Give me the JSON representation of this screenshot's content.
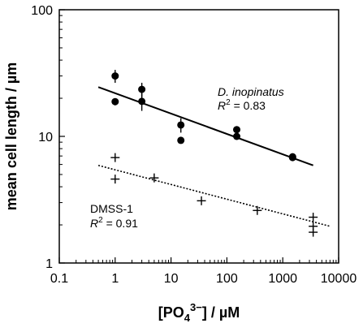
{
  "chart_data": {
    "type": "scatter",
    "xlabel": {
      "pre": "[PO",
      "sub": "4",
      "sup": "3−",
      "post": "] / µM"
    },
    "ylabel": "mean cell length / µm",
    "xscale": "log",
    "yscale": "log",
    "xlim": [
      0.1,
      10000
    ],
    "ylim": [
      1,
      100
    ],
    "xticks": [
      {
        "value": 0.1,
        "label": "0.1"
      },
      {
        "value": 1,
        "label": "1"
      },
      {
        "value": 10,
        "label": "10"
      },
      {
        "value": 100,
        "label": "100"
      },
      {
        "value": 1000,
        "label": "1000"
      },
      {
        "value": 10000,
        "label": "10000"
      }
    ],
    "yticks": [
      {
        "value": 1,
        "label": "1"
      },
      {
        "value": 10,
        "label": "10"
      },
      {
        "value": 100,
        "label": "100"
      }
    ],
    "grid": false,
    "legend": "none",
    "series": [
      {
        "name": "D. inopinatus",
        "marker": "filled-circle",
        "points": [
          {
            "x": 1,
            "y": 30,
            "err": 3.5
          },
          {
            "x": 1,
            "y": 18.8,
            "err": 1.2
          },
          {
            "x": 3,
            "y": 23.5,
            "err": 3
          },
          {
            "x": 3,
            "y": 18.9,
            "err": 3
          },
          {
            "x": 15,
            "y": 12.3,
            "err": 1.6
          },
          {
            "x": 15,
            "y": 9.3,
            "err": 0.5
          },
          {
            "x": 150,
            "y": 11.3,
            "err": 0.7
          },
          {
            "x": 150,
            "y": 10,
            "err": 0.5
          },
          {
            "x": 1500,
            "y": 6.9,
            "err": 0.4
          },
          {
            "x": 1500,
            "y": 6.8,
            "err": 0.4
          }
        ],
        "fit": {
          "style": "solid",
          "from": {
            "x": 0.5,
            "y": 24.5
          },
          "to": {
            "x": 3500,
            "y": 5.9
          }
        },
        "annotation": {
          "name": "D. inopinatus",
          "r2_label": "R",
          "r2_sup": "2",
          "r2_value": " = 0.83"
        }
      },
      {
        "name": "DMSS-1",
        "marker": "plus",
        "points": [
          {
            "x": 1,
            "y": 6.8
          },
          {
            "x": 1,
            "y": 4.6
          },
          {
            "x": 5,
            "y": 4.7
          },
          {
            "x": 35,
            "y": 3.1
          },
          {
            "x": 350,
            "y": 2.6
          },
          {
            "x": 3500,
            "y": 2.3
          },
          {
            "x": 3500,
            "y": 1.95
          },
          {
            "x": 3500,
            "y": 1.75
          }
        ],
        "fit": {
          "style": "dotted",
          "from": {
            "x": 0.5,
            "y": 5.9
          },
          "to": {
            "x": 7000,
            "y": 1.95
          }
        },
        "annotation": {
          "name": "DMSS-1",
          "r2_label": "R",
          "r2_sup": "2",
          "r2_value": " = 0.91"
        }
      }
    ]
  }
}
